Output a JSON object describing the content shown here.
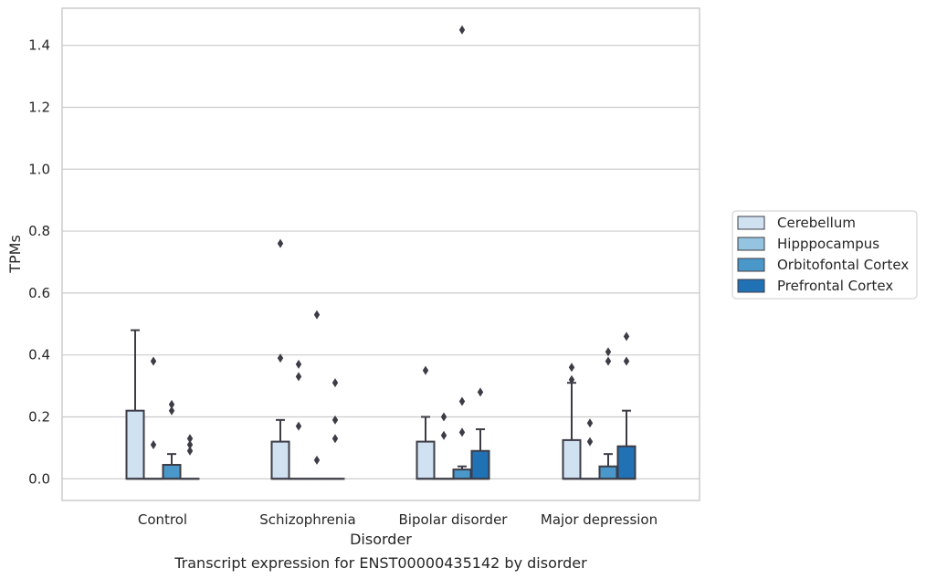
{
  "chart_data": {
    "type": "box",
    "title": "",
    "caption": "Transcript expression for ENST00000435142 by disorder",
    "xlabel": "Disorder",
    "ylabel": "TPMs",
    "ylim": [
      -0.07,
      1.52
    ],
    "yticks": [
      0.0,
      0.2,
      0.4,
      0.6,
      0.8,
      1.0,
      1.2,
      1.4
    ],
    "grid": "horizontal",
    "legend_position": "right",
    "categories": [
      "Control",
      "Schizophrenia",
      "Bipolar disorder",
      "Major depression"
    ],
    "series": [
      {
        "name": "Cerebellum",
        "color": "#d0e1f2",
        "boxes": [
          {
            "q1": 0.0,
            "median": 0.0,
            "q3": 0.22,
            "whisker_low": 0.0,
            "whisker_high": 0.48,
            "outliers": []
          },
          {
            "q1": 0.0,
            "median": 0.0,
            "q3": 0.12,
            "whisker_low": 0.0,
            "whisker_high": 0.19,
            "outliers": [
              0.76,
              0.39
            ]
          },
          {
            "q1": 0.0,
            "median": 0.0,
            "q3": 0.12,
            "whisker_low": 0.0,
            "whisker_high": 0.2,
            "outliers": [
              0.35
            ]
          },
          {
            "q1": 0.0,
            "median": 0.0,
            "q3": 0.125,
            "whisker_low": 0.0,
            "whisker_high": 0.31,
            "outliers": [
              0.36,
              0.32
            ]
          }
        ]
      },
      {
        "name": "Hipppocampus",
        "color": "#94c4df",
        "boxes": [
          {
            "q1": 0.0,
            "median": 0.0,
            "q3": 0.0,
            "whisker_low": 0.0,
            "whisker_high": 0.0,
            "outliers": [
              0.38,
              0.11
            ]
          },
          {
            "q1": 0.0,
            "median": 0.0,
            "q3": 0.0,
            "whisker_low": 0.0,
            "whisker_high": 0.0,
            "outliers": [
              0.37,
              0.33,
              0.17
            ]
          },
          {
            "q1": 0.0,
            "median": 0.0,
            "q3": 0.0,
            "whisker_low": 0.0,
            "whisker_high": 0.0,
            "outliers": [
              0.2,
              0.14
            ]
          },
          {
            "q1": 0.0,
            "median": 0.0,
            "q3": 0.0,
            "whisker_low": 0.0,
            "whisker_high": 0.0,
            "outliers": [
              0.18,
              0.12
            ]
          }
        ]
      },
      {
        "name": "Orbitofontal Cortex",
        "color": "#4a98c9",
        "boxes": [
          {
            "q1": 0.0,
            "median": 0.0,
            "q3": 0.045,
            "whisker_low": 0.0,
            "whisker_high": 0.08,
            "outliers": [
              0.24,
              0.22
            ]
          },
          {
            "q1": 0.0,
            "median": 0.0,
            "q3": 0.0,
            "whisker_low": 0.0,
            "whisker_high": 0.0,
            "outliers": [
              0.53,
              0.06
            ]
          },
          {
            "q1": 0.0,
            "median": 0.0,
            "q3": 0.03,
            "whisker_low": 0.0,
            "whisker_high": 0.04,
            "outliers": [
              1.45,
              0.25,
              0.15
            ]
          },
          {
            "q1": 0.0,
            "median": 0.0,
            "q3": 0.04,
            "whisker_low": 0.0,
            "whisker_high": 0.08,
            "outliers": [
              0.41,
              0.38
            ]
          }
        ]
      },
      {
        "name": "Prefrontal Cortex",
        "color": "#2171b5",
        "boxes": [
          {
            "q1": 0.0,
            "median": 0.0,
            "q3": 0.0,
            "whisker_low": 0.0,
            "whisker_high": 0.0,
            "outliers": [
              0.13,
              0.11,
              0.09
            ]
          },
          {
            "q1": 0.0,
            "median": 0.0,
            "q3": 0.0,
            "whisker_low": 0.0,
            "whisker_high": 0.0,
            "outliers": [
              0.31,
              0.19,
              0.13
            ]
          },
          {
            "q1": 0.0,
            "median": 0.0,
            "q3": 0.09,
            "whisker_low": 0.0,
            "whisker_high": 0.16,
            "outliers": [
              0.28
            ]
          },
          {
            "q1": 0.0,
            "median": 0.0,
            "q3": 0.105,
            "whisker_low": 0.0,
            "whisker_high": 0.22,
            "outliers": [
              0.46,
              0.38
            ]
          }
        ]
      }
    ]
  }
}
